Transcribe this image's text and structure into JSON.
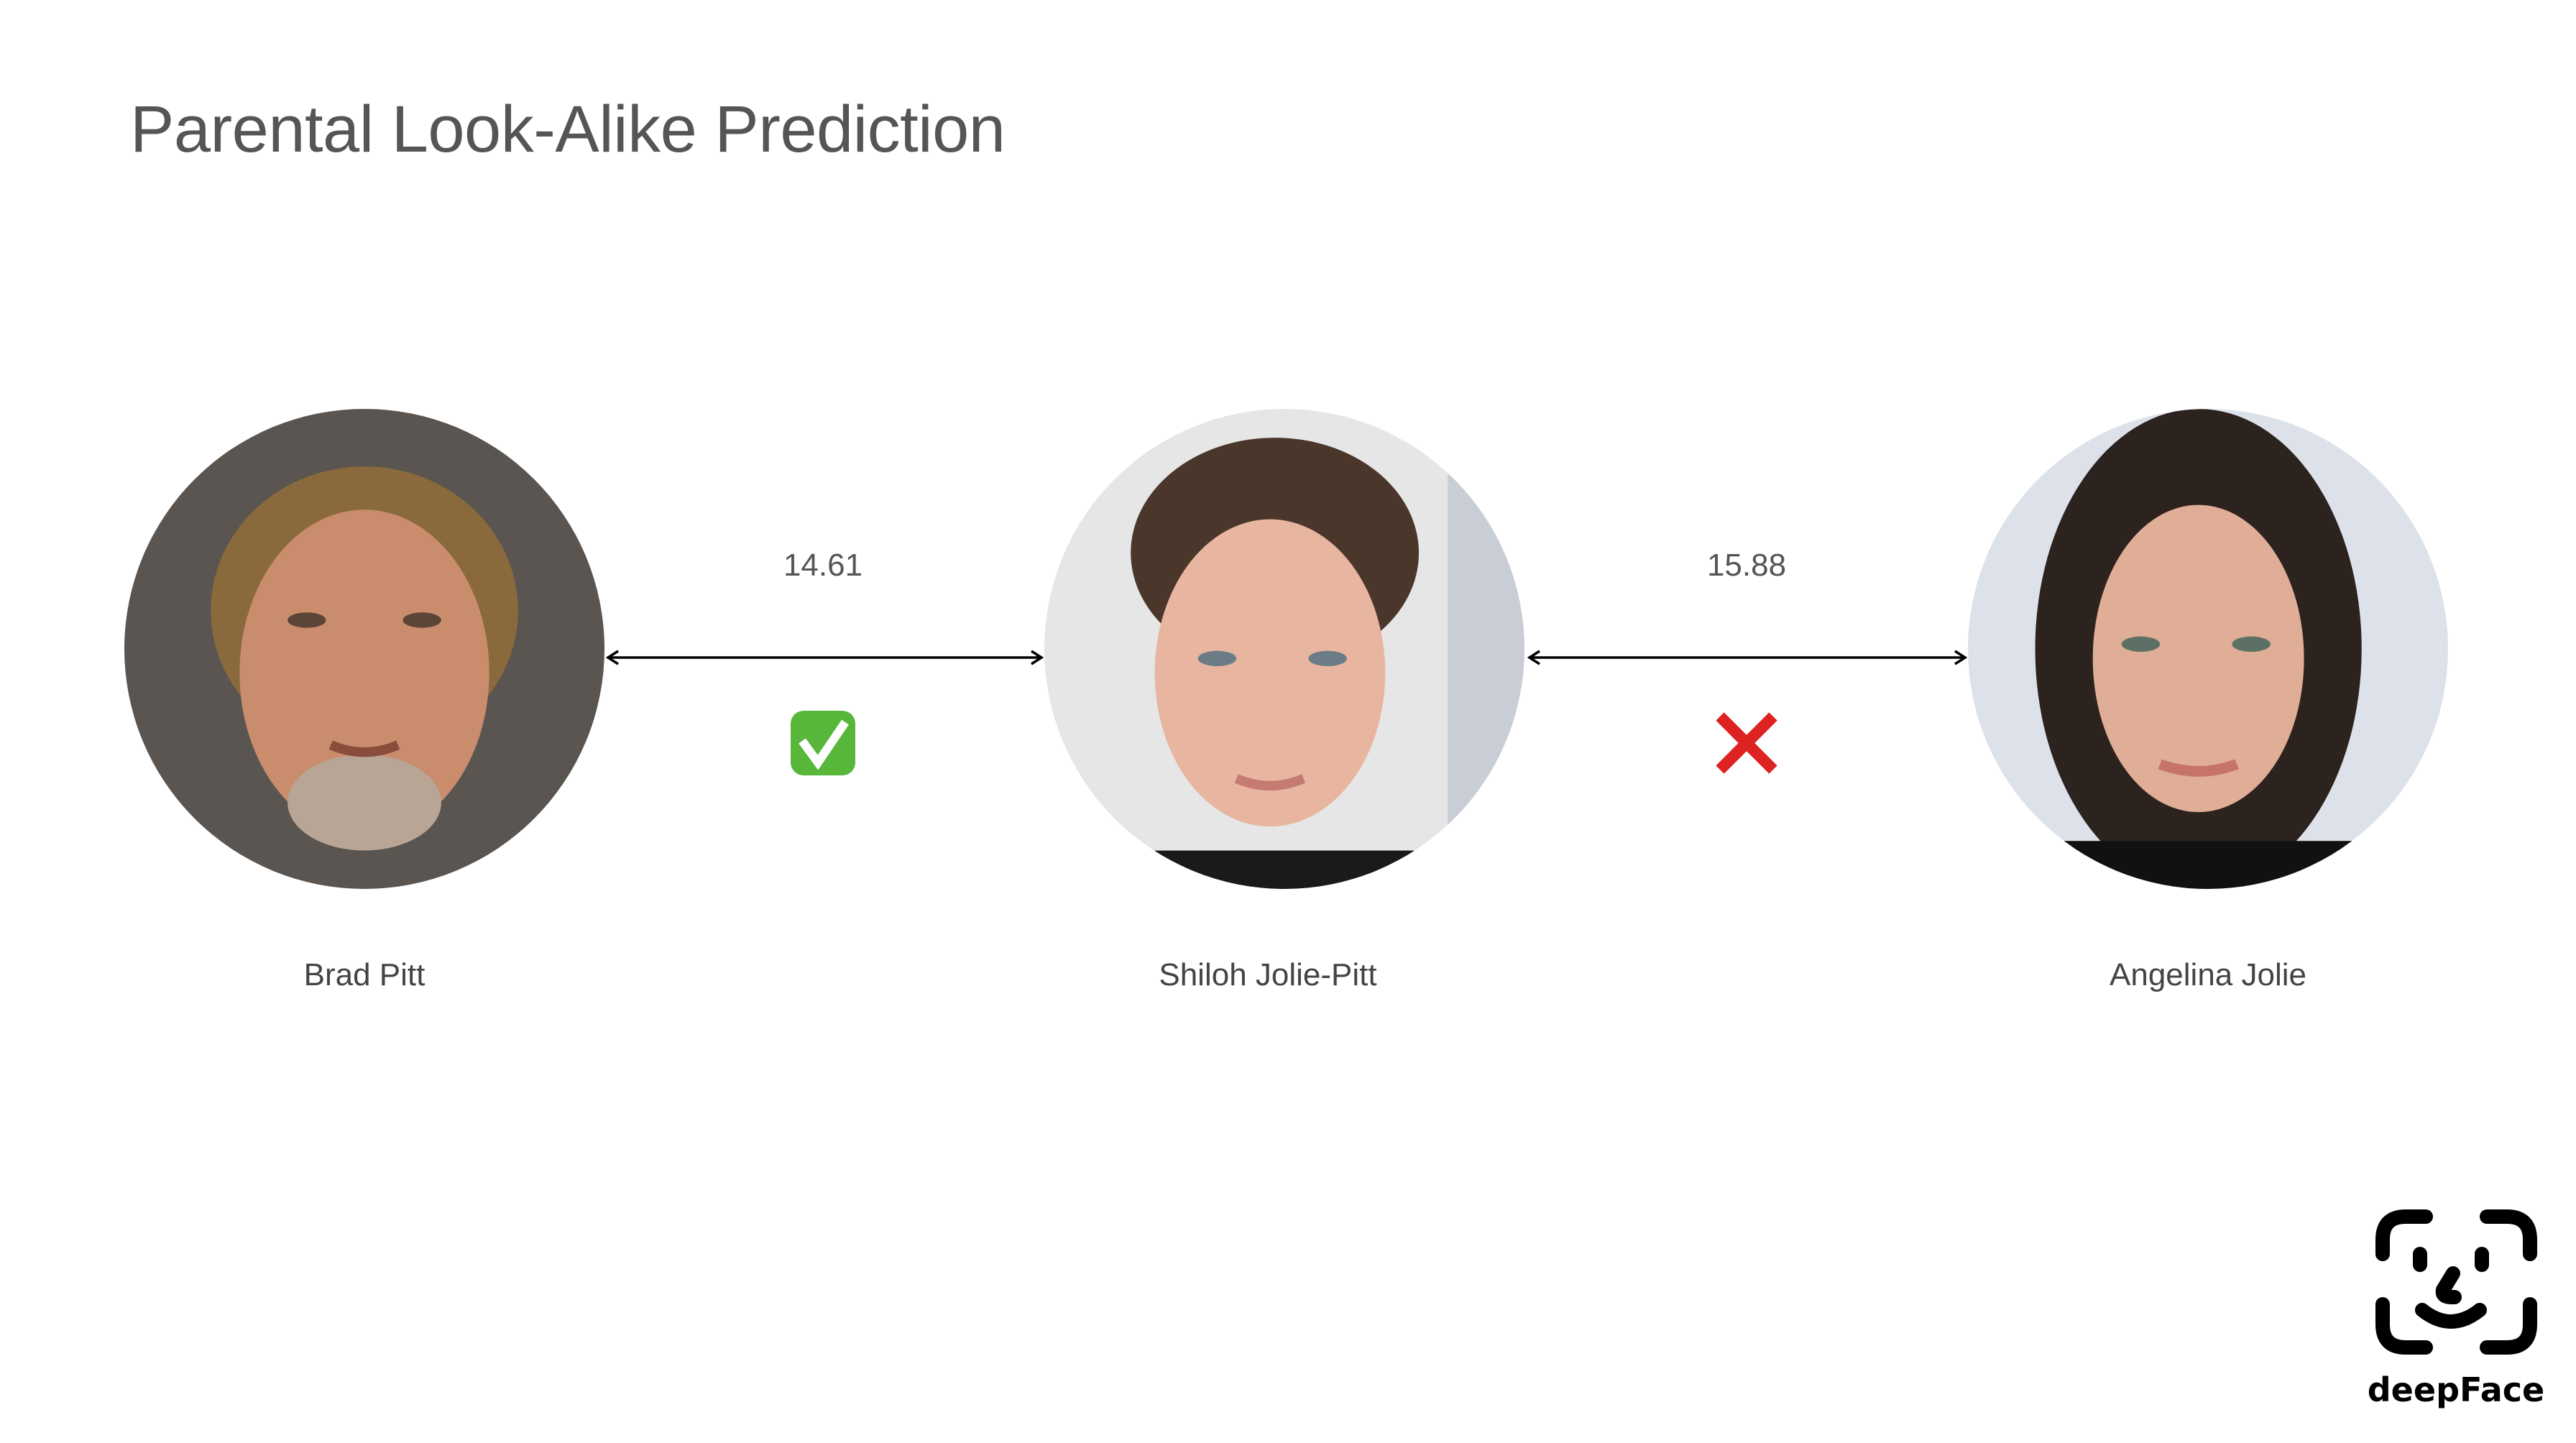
{
  "title": "Parental Look-Alike Prediction",
  "people": [
    {
      "name": "Brad Pitt"
    },
    {
      "name": "Shiloh Jolie-Pitt"
    },
    {
      "name": "Angelina Jolie"
    }
  ],
  "comparisons": [
    {
      "distance": "14.61",
      "verdict": "match",
      "icon": "green-check-mark-icon"
    },
    {
      "distance": "15.88",
      "verdict": "no-match",
      "icon": "red-cross-icon"
    }
  ],
  "logo": {
    "text": "deepFace"
  },
  "colors": {
    "title": "#555555",
    "check": "#56b73a",
    "cross": "#dd2222"
  }
}
